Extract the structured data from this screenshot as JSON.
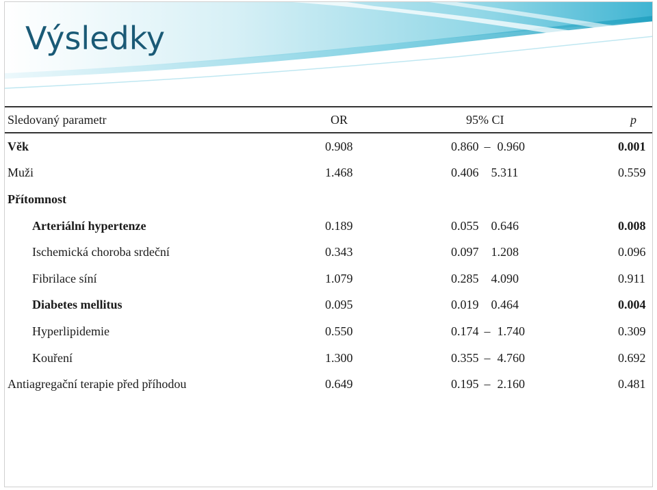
{
  "title": "Výsledky",
  "colors": {
    "title": "#1a5a76",
    "band_light": "#c9eaf3",
    "band_mid": "#6cc9de",
    "band_dark": "#1f9fbf"
  },
  "table": {
    "headers": {
      "param": "Sledovaný parametr",
      "or": "OR",
      "ci": "95% CI",
      "p": "p"
    },
    "rows": [
      {
        "label": "Věk",
        "or": "0.908",
        "ci_low": "0.860",
        "ci_dash": "–",
        "ci_high": "0.960",
        "p": "0.001",
        "indent": false,
        "bold_label": true,
        "bold_p": true
      },
      {
        "label": "Muži",
        "or": "1.468",
        "ci_low": "0.406",
        "ci_dash": "",
        "ci_high": "5.311",
        "p": "0.559",
        "indent": false,
        "bold_label": false,
        "bold_p": false
      },
      {
        "label": "Přítomnost",
        "or": "",
        "ci_low": "",
        "ci_dash": "",
        "ci_high": "",
        "p": "",
        "indent": false,
        "bold_label": true,
        "bold_p": false
      },
      {
        "label": "Arteriální hypertenze",
        "or": "0.189",
        "ci_low": "0.055",
        "ci_dash": "",
        "ci_high": "0.646",
        "p": "0.008",
        "indent": true,
        "bold_label": true,
        "bold_p": true
      },
      {
        "label": "Ischemická choroba srdeční",
        "or": "0.343",
        "ci_low": "0.097",
        "ci_dash": "",
        "ci_high": "1.208",
        "p": "0.096",
        "indent": true,
        "bold_label": false,
        "bold_p": false
      },
      {
        "label": "Fibrilace síní",
        "or": "1.079",
        "ci_low": "0.285",
        "ci_dash": "",
        "ci_high": "4.090",
        "p": "0.911",
        "indent": true,
        "bold_label": false,
        "bold_p": false
      },
      {
        "label": "Diabetes mellitus",
        "or": "0.095",
        "ci_low": "0.019",
        "ci_dash": "",
        "ci_high": "0.464",
        "p": "0.004",
        "indent": true,
        "bold_label": true,
        "bold_p": true
      },
      {
        "label": "Hyperlipidemie",
        "or": "0.550",
        "ci_low": "0.174",
        "ci_dash": "–",
        "ci_high": "1.740",
        "p": "0.309",
        "indent": true,
        "bold_label": false,
        "bold_p": false
      },
      {
        "label": "Kouření",
        "or": "1.300",
        "ci_low": "0.355",
        "ci_dash": "–",
        "ci_high": "4.760",
        "p": "0.692",
        "indent": true,
        "bold_label": false,
        "bold_p": false
      },
      {
        "label": "Antiagregační terapie před příhodou",
        "or": "0.649",
        "ci_low": "0.195",
        "ci_dash": "–",
        "ci_high": "2.160",
        "p": "0.481",
        "indent": false,
        "bold_label": false,
        "bold_p": false
      }
    ]
  }
}
